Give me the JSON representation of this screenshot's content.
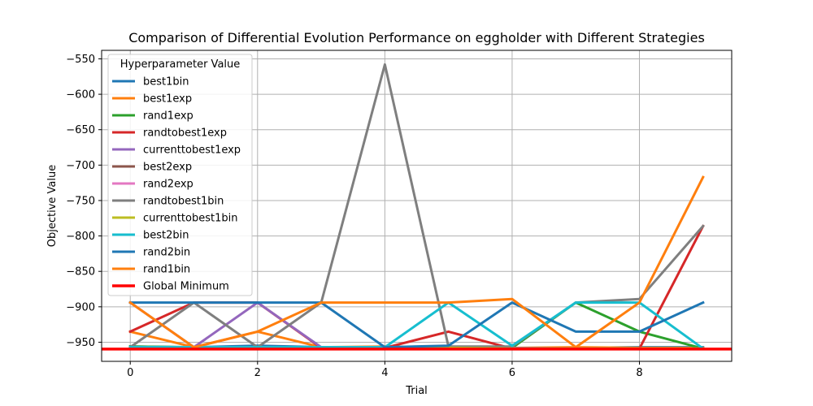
{
  "chart_data": {
    "type": "line",
    "title": "Comparison of Differential Evolution Performance on eggholder with Different Strategies",
    "xlabel": "Trial",
    "ylabel": "Objective Value",
    "xlim": [
      -0.45,
      9.45
    ],
    "ylim": [
      -977,
      -538
    ],
    "xticks": [
      0,
      2,
      4,
      6,
      8
    ],
    "xtick_labels": [
      "0",
      "2",
      "4",
      "6",
      "8"
    ],
    "yticks": [
      -950,
      -900,
      -850,
      -800,
      -750,
      -700,
      -650,
      -600,
      -550
    ],
    "ytick_labels": [
      "−950",
      "−900",
      "−850",
      "−800",
      "−750",
      "−700",
      "−650",
      "−600",
      "−550"
    ],
    "grid": true,
    "legend_title": "Hyperparameter Value",
    "legend_position": "upper-left",
    "x": [
      0,
      1,
      2,
      3,
      4,
      5,
      6,
      7,
      8,
      9
    ],
    "series": [
      {
        "name": "best1bin",
        "color": "#1f77b4",
        "values": [
          -956,
          -957,
          -955,
          -957,
          -957,
          -956,
          -959,
          -958,
          -957,
          -957
        ]
      },
      {
        "name": "best1exp",
        "color": "#ff7f0e",
        "values": [
          -935,
          -957,
          -935,
          -957,
          -956,
          -958,
          -958,
          -957,
          -958,
          -958
        ]
      },
      {
        "name": "rand1exp",
        "color": "#2ca02c",
        "values": [
          -956,
          -957,
          -958,
          -958,
          -957,
          -957,
          -958,
          -894,
          -935,
          -959
        ]
      },
      {
        "name": "randtobest1exp",
        "color": "#d62728",
        "values": [
          -935,
          -894,
          -894,
          -958,
          -958,
          -935,
          -959,
          -959,
          -959,
          -786
        ]
      },
      {
        "name": "currenttobest1exp",
        "color": "#9467bd",
        "values": [
          -894,
          -957,
          -894,
          -957,
          -957,
          -958,
          -958,
          -959,
          -959,
          -959
        ]
      },
      {
        "name": "best2exp",
        "color": "#8c564b",
        "values": [
          -958,
          -958,
          -958,
          -958,
          -958,
          -958,
          -959,
          -959,
          -959,
          -959
        ]
      },
      {
        "name": "rand2exp",
        "color": "#e377c2",
        "values": [
          -957,
          -957,
          -957,
          -958,
          -958,
          -958,
          -959,
          -959,
          -959,
          -959
        ]
      },
      {
        "name": "randtobest1bin",
        "color": "#7f7f7f",
        "values": [
          -957,
          -894,
          -957,
          -894,
          -558,
          -956,
          -956,
          -894,
          -889,
          -786
        ]
      },
      {
        "name": "currenttobest1bin",
        "color": "#bcbd22",
        "values": [
          -958,
          -958,
          -958,
          -958,
          -958,
          -958,
          -959,
          -959,
          -959,
          -959
        ]
      },
      {
        "name": "best2bin",
        "color": "#17becf",
        "values": [
          -957,
          -957,
          -957,
          -957,
          -957,
          -894,
          -955,
          -894,
          -894,
          -959
        ]
      },
      {
        "name": "rand2bin",
        "color": "#1f77b4",
        "values": [
          -894,
          -894,
          -894,
          -894,
          -957,
          -955,
          -894,
          -935,
          -935,
          -894
        ]
      },
      {
        "name": "rand1bin",
        "color": "#ff7f0e",
        "values": [
          -894,
          -957,
          -935,
          -894,
          -894,
          -894,
          -889,
          -957,
          -894,
          -717
        ]
      }
    ],
    "global_minimum": {
      "name": "Global Minimum",
      "color": "#ff0000",
      "value": -959.6407
    }
  }
}
